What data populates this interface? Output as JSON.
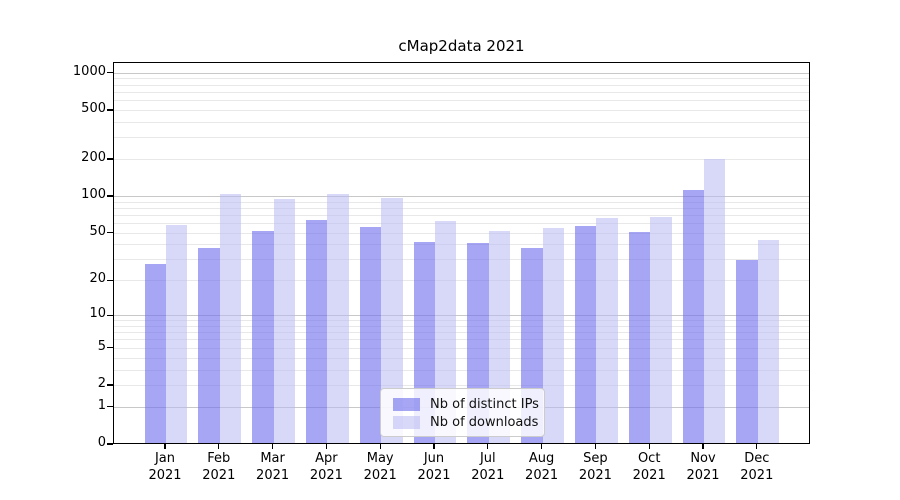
{
  "chart_data": {
    "type": "bar",
    "title": "cMap2data 2021",
    "categories": [
      "Jan 2021",
      "Feb 2021",
      "Mar 2021",
      "Apr 2021",
      "May 2021",
      "Jun 2021",
      "Jul 2021",
      "Aug 2021",
      "Sep 2021",
      "Oct 2021",
      "Nov 2021",
      "Dec 2021"
    ],
    "series": [
      {
        "name": "Nb of distinct IPs",
        "fill": "rgba(112,112,237,0.62)",
        "values": [
          27,
          37,
          51,
          62,
          55,
          41,
          40,
          37,
          56,
          50,
          110,
          29
        ]
      },
      {
        "name": "Nb of downloads",
        "fill": "rgba(184,184,244,0.55)",
        "values": [
          57,
          102,
          93,
          102,
          95,
          61,
          51,
          54,
          65,
          66,
          195,
          43
        ]
      }
    ],
    "xlabel": "",
    "ylabel": "",
    "yscale": "symlog ln(1+x)",
    "y_tick_labels": [
      0,
      1,
      2,
      5,
      10,
      20,
      50,
      100,
      200,
      500,
      1000
    ],
    "y_minor_gridlines": [
      3,
      4,
      6,
      7,
      8,
      9,
      30,
      40,
      60,
      70,
      80,
      90,
      300,
      400,
      600,
      700,
      800,
      900
    ],
    "ylim": [
      0,
      1220
    ],
    "grid": true,
    "legend_position": "lower center",
    "colors": {
      "bar_distinct_ips": "#a7a7f1",
      "bar_downloads": "#d8d8f9",
      "gridline_major": "#c8c8c8",
      "gridline_minor": "#e8e8e8",
      "axis": "#000000"
    }
  }
}
